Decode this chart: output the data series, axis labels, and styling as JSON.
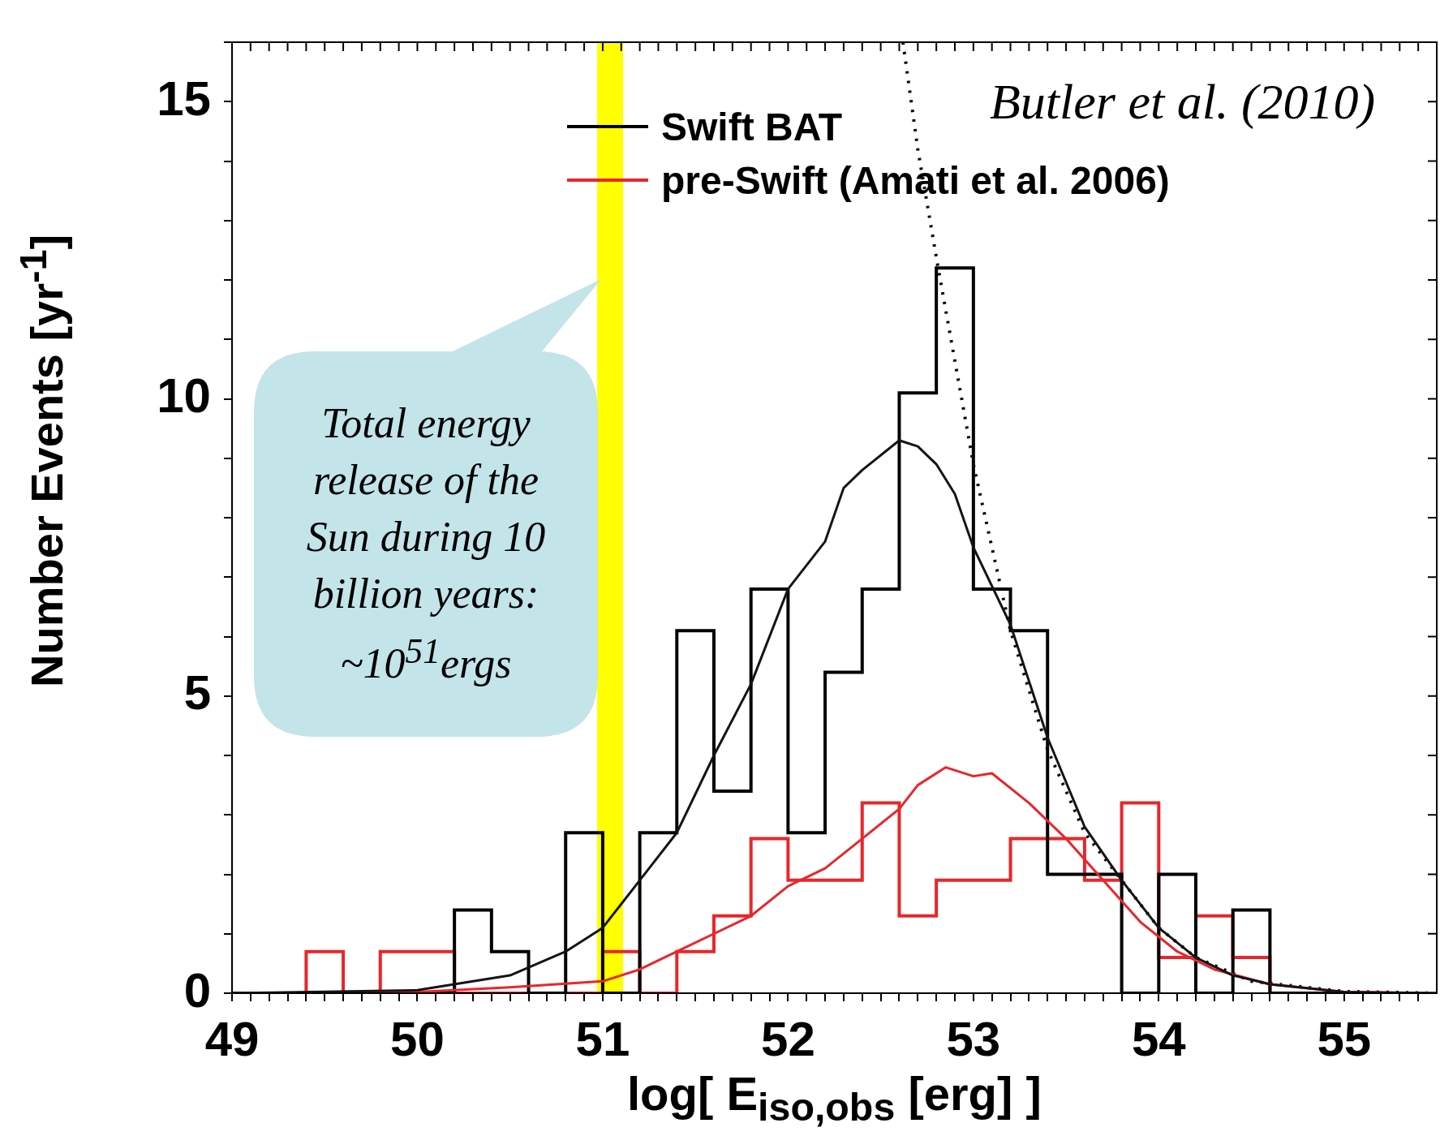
{
  "chart_data": {
    "type": "histogram",
    "xlabel": "log[ E$_{iso,obs}$ [erg] ]",
    "ylabel": "Number Events [yr$^{-1}$]",
    "bins": [
      49.0,
      49.2,
      49.4,
      49.6,
      49.8,
      50.0,
      50.2,
      50.4,
      50.6,
      50.8,
      51.0,
      51.2,
      51.4,
      51.6,
      51.8,
      52.0,
      52.2,
      52.4,
      52.6,
      52.8,
      53.0,
      53.2,
      53.4,
      53.6,
      53.8,
      54.0,
      54.2,
      54.4,
      54.6,
      54.8,
      55.0,
      55.2,
      55.4
    ],
    "series": [
      {
        "name": "Swift BAT",
        "color": "#000000",
        "values": [
          0,
          0,
          0,
          0,
          0,
          0,
          1.4,
          0.7,
          0,
          2.7,
          0,
          2.7,
          6.1,
          3.4,
          6.8,
          2.7,
          5.4,
          6.8,
          10.1,
          12.2,
          6.8,
          6.1,
          2.0,
          2.0,
          0,
          2.0,
          0,
          1.4,
          0,
          0,
          0,
          0
        ]
      },
      {
        "name": "pre-Swift (Amati et al. 2006)",
        "color": "#e8262b",
        "values": [
          0,
          0,
          0.7,
          0,
          0.7,
          0.7,
          0,
          0,
          0,
          0,
          0.7,
          0,
          0.7,
          1.3,
          2.6,
          1.9,
          1.9,
          3.2,
          1.3,
          1.9,
          1.9,
          2.6,
          2.6,
          1.9,
          3.2,
          0.6,
          1.3,
          0.6,
          0,
          0,
          0,
          0
        ]
      },
      {
        "type": "line",
        "color": "#141414",
        "x": [
          49,
          50,
          50.5,
          50.8,
          51,
          51.2,
          51.4,
          51.6,
          51.8,
          52,
          52.2,
          52.3,
          52.4,
          52.6,
          52.7,
          52.8,
          52.9,
          53,
          53.2,
          53.4,
          53.6,
          53.8,
          54,
          54.2,
          54.4,
          54.6,
          55,
          55.5
        ],
        "values": [
          0,
          0.05,
          0.3,
          0.7,
          1.1,
          1.9,
          2.7,
          4.0,
          5.2,
          6.8,
          7.6,
          8.5,
          8.8,
          9.3,
          9.2,
          8.9,
          8.4,
          7.5,
          6.2,
          4.3,
          2.8,
          1.9,
          1.1,
          0.6,
          0.3,
          0.15,
          0.02,
          0
        ]
      },
      {
        "type": "line",
        "color": "#e8262b",
        "x": [
          49,
          50,
          50.5,
          51,
          51.2,
          51.4,
          51.6,
          51.8,
          52,
          52.2,
          52.4,
          52.6,
          52.7,
          52.85,
          53,
          53.1,
          53.3,
          53.5,
          53.7,
          53.9,
          54.1,
          54.3,
          54.6,
          55,
          55.5
        ],
        "values": [
          0,
          0.02,
          0.1,
          0.2,
          0.4,
          0.7,
          1.0,
          1.3,
          1.8,
          2.1,
          2.6,
          3.1,
          3.5,
          3.8,
          3.65,
          3.7,
          3.2,
          2.6,
          1.9,
          1.2,
          0.7,
          0.4,
          0.15,
          0.02,
          0
        ]
      },
      {
        "type": "line",
        "color": "#0a0a0a",
        "line_style": "dotted",
        "x": [
          52.62,
          52.7,
          52.81,
          53.0,
          53.2,
          53.4,
          53.6,
          53.8,
          54.0,
          54.2,
          54.5,
          55,
          55.5
        ],
        "values": [
          16,
          14.2,
          12.2,
          8.9,
          6.1,
          4.1,
          2.7,
          1.9,
          1.1,
          0.6,
          0.2,
          0.03,
          0
        ]
      }
    ],
    "xlim": [
      49,
      55.5
    ],
    "ylim": [
      0,
      16
    ],
    "xticks": [
      49,
      {
        "value": 49.1,
        "label": null
      },
      {
        "value": 49.2,
        "label": null
      },
      {
        "value": 49.3,
        "label": null
      },
      {
        "value": 49.4,
        "label": null
      },
      {
        "value": 49.5,
        "label": null
      },
      {
        "value": 49.6,
        "label": null
      },
      {
        "value": 49.7,
        "label": null
      },
      {
        "value": 49.8,
        "label": null
      },
      {
        "value": 49.9,
        "label": null
      },
      50,
      {
        "value": 50.1,
        "label": null
      },
      {
        "value": 50.2,
        "label": null
      },
      {
        "value": 50.3,
        "label": null
      },
      {
        "value": 50.4,
        "label": null
      },
      {
        "value": 50.5,
        "label": null
      },
      {
        "value": 50.6,
        "label": null
      },
      {
        "value": 50.7,
        "label": null
      },
      {
        "value": 50.8,
        "label": null
      },
      {
        "value": 50.9,
        "label": null
      },
      51,
      {
        "value": 51.1,
        "label": null
      },
      {
        "value": 51.2,
        "label": null
      },
      {
        "value": 51.3,
        "label": null
      },
      {
        "value": 51.4,
        "label": null
      },
      {
        "value": 51.5,
        "label": null
      },
      {
        "value": 51.6,
        "label": null
      },
      {
        "value": 51.7,
        "label": null
      },
      {
        "value": 51.8,
        "label": null
      },
      {
        "value": 51.9,
        "label": null
      },
      52,
      {
        "value": 52.1,
        "label": null
      },
      {
        "value": 52.2,
        "label": null
      },
      {
        "value": 52.3,
        "label": null
      },
      {
        "value": 52.4,
        "label": null
      },
      {
        "value": 52.5,
        "label": null
      },
      {
        "value": 52.6,
        "label": null
      },
      {
        "value": 52.7,
        "label": null
      },
      {
        "value": 52.8,
        "label": null
      },
      {
        "value": 52.9,
        "label": null
      },
      53,
      {
        "value": 53.1,
        "label": null
      },
      {
        "value": 53.2,
        "label": null
      },
      {
        "value": 53.3,
        "label": null
      },
      {
        "value": 53.4,
        "label": null
      },
      {
        "value": 53.5,
        "label": null
      },
      {
        "value": 53.6,
        "label": null
      },
      {
        "value": 53.7,
        "label": null
      },
      {
        "value": 53.8,
        "label": null
      },
      {
        "value": 53.9,
        "label": null
      },
      54,
      {
        "value": 54.1,
        "label": null
      },
      {
        "value": 54.2,
        "label": null
      },
      {
        "value": 54.3,
        "label": null
      },
      {
        "value": 54.4,
        "label": null
      },
      {
        "value": 54.5,
        "label": null
      },
      {
        "value": 54.6,
        "label": null
      },
      {
        "value": 54.7,
        "label": null
      },
      {
        "value": 54.8,
        "label": null
      },
      {
        "value": 54.9,
        "label": null
      },
      55,
      {
        "value": 55.1,
        "label": null
      },
      {
        "value": 55.2,
        "label": null
      },
      {
        "value": 55.3,
        "label": null
      },
      {
        "value": 55.4,
        "label": null
      }
    ],
    "yticks": [
      0,
      {
        "value": 1,
        "label": null
      },
      {
        "value": 2,
        "label": null
      },
      {
        "value": 3,
        "label": null
      },
      {
        "value": 4,
        "label": null
      },
      5,
      {
        "value": 6,
        "label": null
      },
      {
        "value": 7,
        "label": null
      },
      {
        "value": 8,
        "label": null
      },
      {
        "value": 9,
        "label": null
      },
      10,
      {
        "value": 11,
        "label": null
      },
      {
        "value": 12,
        "label": null
      },
      {
        "value": 13,
        "label": null
      },
      {
        "value": 14,
        "label": null
      },
      15,
      {
        "value": 16,
        "label": null
      }
    ],
    "bands": [
      {
        "axis": "x",
        "from": 50.97,
        "to": 51.11,
        "color": "#ffff00"
      }
    ],
    "legend": "top",
    "annotations": [
      "Butler et al. (2010)",
      "Total energy release of the Sun during 10 billion years: ~10$^{51}$ergs"
    ]
  }
}
